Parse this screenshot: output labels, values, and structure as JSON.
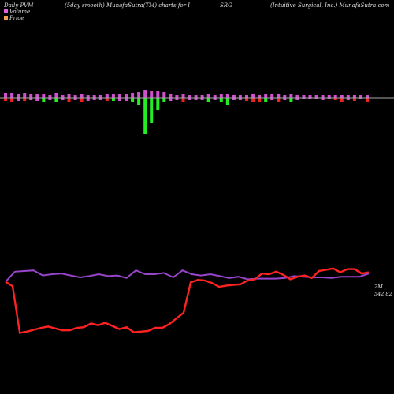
{
  "header": {
    "left": "Daily PVM",
    "middle": "(5day smooth) MunafaSutra(TM) charts for I",
    "symbol": "SRG",
    "right": "(Intuitive  Surgical,  Inc.) MunafaSutra.com"
  },
  "legend": [
    {
      "label": "Volume",
      "color": "#e060e0"
    },
    {
      "label": "Price",
      "color": "#f0a050"
    }
  ],
  "colors": {
    "up": "#22ee22",
    "down": "#ee2222",
    "neutral": "#d050d0",
    "baseline": "#aaaaaa",
    "price_line": "#ff2222",
    "volume_line": "#9944cc"
  },
  "chart_data": [
    {
      "type": "bar",
      "name": "volume_bars",
      "unit": "relative",
      "bars": [
        {
          "up": 6,
          "down": 4,
          "c": "down"
        },
        {
          "up": 6,
          "down": 5,
          "c": "down"
        },
        {
          "up": 5,
          "down": 4,
          "c": "neutral"
        },
        {
          "up": 6,
          "down": 4,
          "c": "down"
        },
        {
          "up": 5,
          "down": 3,
          "c": "neutral"
        },
        {
          "up": 5,
          "down": 4,
          "c": "neutral"
        },
        {
          "up": 5,
          "down": 5,
          "c": "up"
        },
        {
          "up": 4,
          "down": 3,
          "c": "neutral"
        },
        {
          "up": 6,
          "down": 6,
          "c": "up"
        },
        {
          "up": 4,
          "down": 3,
          "c": "neutral"
        },
        {
          "up": 5,
          "down": 5,
          "c": "down"
        },
        {
          "up": 4,
          "down": 3,
          "c": "neutral"
        },
        {
          "up": 5,
          "down": 5,
          "c": "down"
        },
        {
          "up": 4,
          "down": 4,
          "c": "neutral"
        },
        {
          "up": 4,
          "down": 3,
          "c": "neutral"
        },
        {
          "up": 4,
          "down": 3,
          "c": "neutral"
        },
        {
          "up": 5,
          "down": 4,
          "c": "down"
        },
        {
          "up": 5,
          "down": 4,
          "c": "up"
        },
        {
          "up": 5,
          "down": 4,
          "c": "neutral"
        },
        {
          "up": 5,
          "down": 4,
          "c": "neutral"
        },
        {
          "up": 6,
          "down": 6,
          "c": "up"
        },
        {
          "up": 7,
          "down": 9,
          "c": "up"
        },
        {
          "up": 10,
          "down": 46,
          "c": "up"
        },
        {
          "up": 9,
          "down": 32,
          "c": "up"
        },
        {
          "up": 8,
          "down": 15,
          "c": "up"
        },
        {
          "up": 7,
          "down": 6,
          "c": "up"
        },
        {
          "up": 5,
          "down": 4,
          "c": "neutral"
        },
        {
          "up": 4,
          "down": 3,
          "c": "neutral"
        },
        {
          "up": 5,
          "down": 5,
          "c": "down"
        },
        {
          "up": 4,
          "down": 3,
          "c": "neutral"
        },
        {
          "up": 4,
          "down": 3,
          "c": "neutral"
        },
        {
          "up": 4,
          "down": 3,
          "c": "neutral"
        },
        {
          "up": 5,
          "down": 5,
          "c": "up"
        },
        {
          "up": 4,
          "down": 3,
          "c": "neutral"
        },
        {
          "up": 5,
          "down": 6,
          "c": "up"
        },
        {
          "up": 5,
          "down": 9,
          "c": "up"
        },
        {
          "up": 4,
          "down": 3,
          "c": "neutral"
        },
        {
          "up": 4,
          "down": 3,
          "c": "neutral"
        },
        {
          "up": 4,
          "down": 4,
          "c": "down"
        },
        {
          "up": 5,
          "down": 5,
          "c": "down"
        },
        {
          "up": 4,
          "down": 6,
          "c": "down"
        },
        {
          "up": 5,
          "down": 6,
          "c": "up"
        },
        {
          "up": 5,
          "down": 3,
          "c": "neutral"
        },
        {
          "up": 5,
          "down": 5,
          "c": "down"
        },
        {
          "up": 4,
          "down": 3,
          "c": "neutral"
        },
        {
          "up": 5,
          "down": 5,
          "c": "up"
        },
        {
          "up": 3,
          "down": 3,
          "c": "neutral"
        },
        {
          "up": 3,
          "down": 2,
          "c": "neutral"
        },
        {
          "up": 3,
          "down": 2,
          "c": "neutral"
        },
        {
          "up": 3,
          "down": 2,
          "c": "neutral"
        },
        {
          "up": 3,
          "down": 3,
          "c": "neutral"
        },
        {
          "up": 3,
          "down": 2,
          "c": "neutral"
        },
        {
          "up": 4,
          "down": 3,
          "c": "down"
        },
        {
          "up": 4,
          "down": 5,
          "c": "down"
        },
        {
          "up": 3,
          "down": 3,
          "c": "neutral"
        },
        {
          "up": 4,
          "down": 4,
          "c": "down"
        },
        {
          "up": 3,
          "down": 2,
          "c": "neutral"
        },
        {
          "up": 4,
          "down": 6,
          "c": "down"
        }
      ]
    },
    {
      "type": "line",
      "name": "price_and_volume_lines",
      "y_range": [
        0,
        200
      ],
      "series": [
        {
          "key": "price",
          "values": [
            128,
            121,
            47,
            49,
            52,
            55,
            57,
            54,
            51,
            51,
            55,
            56,
            62,
            59,
            63,
            58,
            53,
            56,
            48,
            49,
            50,
            55,
            55,
            61,
            70,
            79,
            127,
            131,
            130,
            126,
            120,
            122,
            123,
            124,
            130,
            132,
            141,
            140,
            144,
            139,
            132,
            136,
            138,
            134,
            145,
            147,
            149,
            143,
            148,
            148,
            141,
            143
          ]
        },
        {
          "key": "volume",
          "values": [
            128,
            144,
            145,
            146,
            138,
            140,
            141,
            138,
            135,
            137,
            140,
            137,
            138,
            134,
            146,
            140,
            140,
            142,
            135,
            146,
            140,
            138,
            140,
            137,
            134,
            136,
            132,
            133,
            133,
            133,
            134,
            137,
            136,
            135,
            135,
            134,
            136,
            136,
            136,
            141
          ],
          "label": "2M"
        }
      ],
      "last_price_label": "542.82"
    }
  ]
}
